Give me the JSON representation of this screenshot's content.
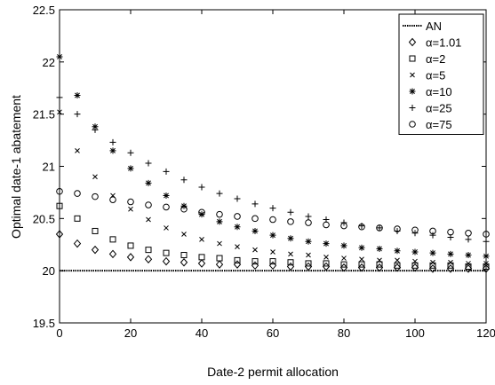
{
  "chart_data": {
    "type": "scatter",
    "title": "",
    "xlabel": "Date-2 permit allocation",
    "ylabel": "Optimal date-1 abatement",
    "xlim": [
      0,
      120
    ],
    "ylim": [
      19.5,
      22.5
    ],
    "xticks": [
      0,
      20,
      40,
      60,
      80,
      100,
      120
    ],
    "yticks": [
      19.5,
      20,
      20.5,
      21,
      21.5,
      22,
      22.5
    ],
    "x": [
      0,
      5,
      10,
      15,
      20,
      25,
      30,
      35,
      40,
      45,
      50,
      55,
      60,
      65,
      70,
      75,
      80,
      85,
      90,
      95,
      100,
      105,
      110,
      115,
      120
    ],
    "grid": false,
    "legend_position": "top-right",
    "reference_line": {
      "name": "AN",
      "y": 20,
      "style": "dotted"
    },
    "series": [
      {
        "name": "α=1.01",
        "marker": "diamond",
        "values": [
          20.35,
          20.26,
          20.2,
          20.16,
          20.13,
          20.11,
          20.09,
          20.08,
          20.07,
          20.06,
          20.06,
          20.05,
          20.05,
          20.04,
          20.04,
          20.04,
          20.03,
          20.03,
          20.03,
          20.03,
          20.03,
          20.02,
          20.02,
          20.02,
          20.02
        ]
      },
      {
        "name": "α=2",
        "marker": "square",
        "values": [
          20.62,
          20.5,
          20.38,
          20.3,
          20.24,
          20.2,
          20.17,
          20.15,
          20.13,
          20.12,
          20.1,
          20.09,
          20.09,
          20.08,
          20.07,
          20.07,
          20.06,
          20.06,
          20.06,
          20.05,
          20.05,
          20.05,
          20.05,
          20.04,
          20.04
        ]
      },
      {
        "name": "α=5",
        "marker": "x",
        "values": [
          21.52,
          21.15,
          20.9,
          20.72,
          20.59,
          20.49,
          20.41,
          20.35,
          20.3,
          20.26,
          20.23,
          20.2,
          20.18,
          20.16,
          20.15,
          20.13,
          20.12,
          20.11,
          20.1,
          20.1,
          20.09,
          20.08,
          20.08,
          20.07,
          20.07
        ]
      },
      {
        "name": "α=10",
        "marker": "asterisk",
        "values": [
          22.05,
          21.68,
          21.38,
          21.15,
          20.98,
          20.84,
          20.72,
          20.62,
          20.54,
          20.47,
          20.42,
          20.38,
          20.34,
          20.31,
          20.28,
          20.26,
          20.24,
          20.22,
          20.21,
          20.19,
          20.18,
          20.17,
          20.16,
          20.15,
          20.14
        ]
      },
      {
        "name": "α=25",
        "marker": "plus",
        "values": [
          21.66,
          21.5,
          21.35,
          21.23,
          21.13,
          21.03,
          20.95,
          20.87,
          20.8,
          20.74,
          20.69,
          20.64,
          20.6,
          20.56,
          20.52,
          20.49,
          20.46,
          20.43,
          20.41,
          20.38,
          20.36,
          20.34,
          20.32,
          20.3,
          20.28
        ]
      },
      {
        "name": "α=75",
        "marker": "circle",
        "values": [
          20.76,
          20.74,
          20.71,
          20.68,
          20.66,
          20.63,
          20.61,
          20.59,
          20.56,
          20.54,
          20.52,
          20.5,
          20.49,
          20.47,
          20.46,
          20.44,
          20.43,
          20.42,
          20.41,
          20.4,
          20.39,
          20.38,
          20.37,
          20.36,
          20.35
        ]
      }
    ]
  }
}
